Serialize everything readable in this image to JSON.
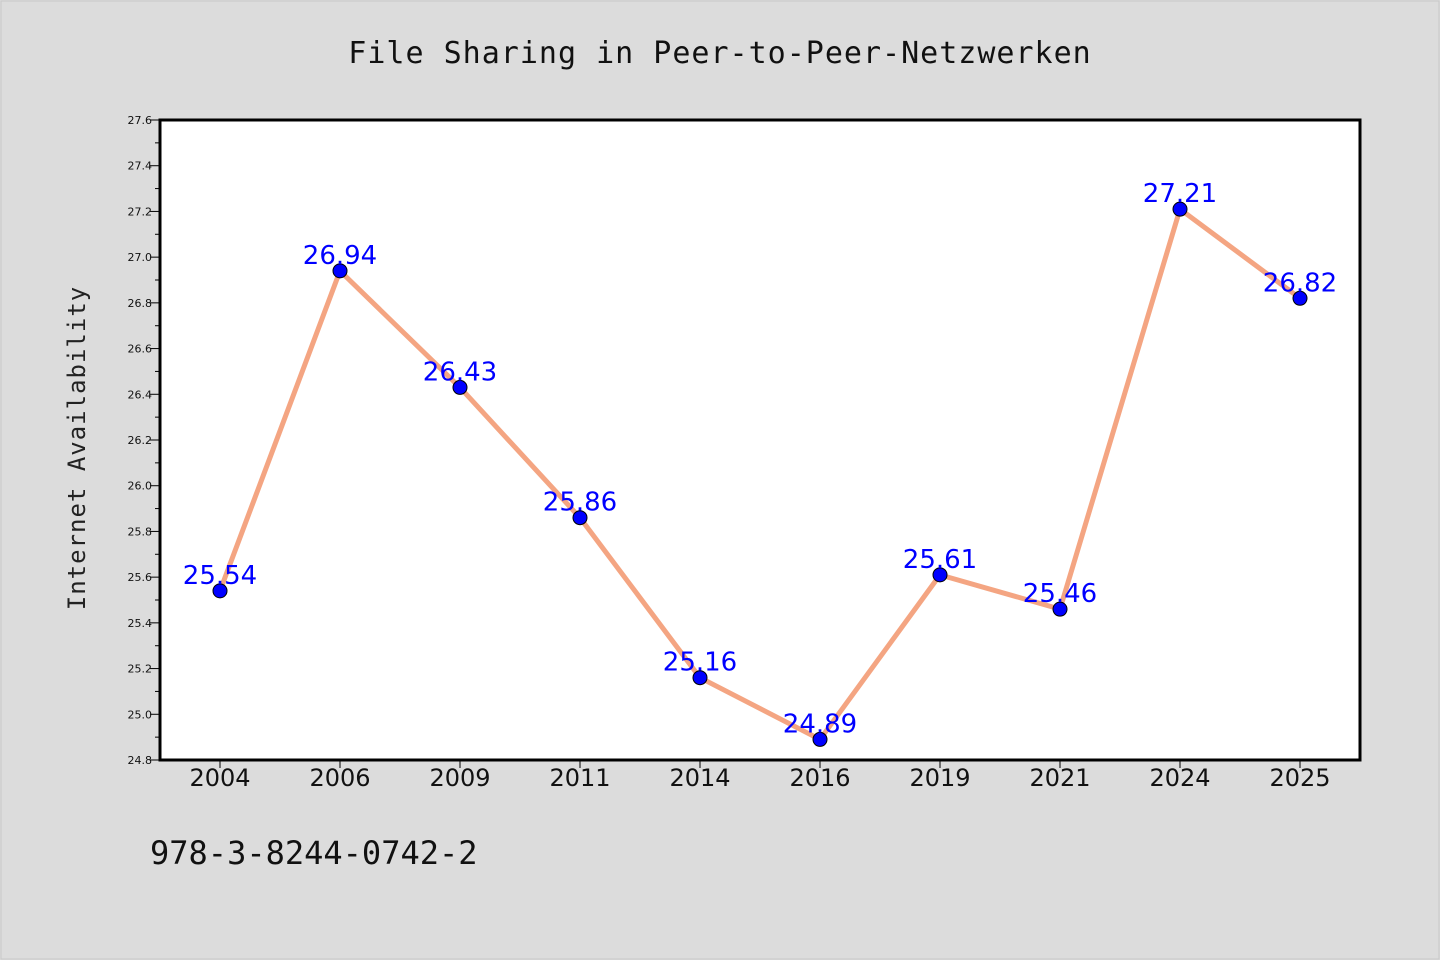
{
  "chart_data": {
    "type": "line",
    "title": "File Sharing in Peer-to-Peer-Netzwerken",
    "xlabel": "",
    "ylabel": "Internet Availability",
    "categories": [
      "2004",
      "2006",
      "2009",
      "2011",
      "2014",
      "2016",
      "2019",
      "2021",
      "2024",
      "2025"
    ],
    "series": [
      {
        "values": [
          25.54,
          26.94,
          26.43,
          25.86,
          25.16,
          24.89,
          25.61,
          25.46,
          27.21,
          26.82
        ]
      }
    ],
    "data_labels": [
      "25.54",
      "26.94",
      "26.43",
      "25.86",
      "25.16",
      "24.89",
      "25.61",
      "25.46",
      "27.21",
      "26.82"
    ],
    "ylim": [
      24.8,
      27.6
    ],
    "yticks": [
      "24.8",
      "25.0",
      "25.2",
      "25.4",
      "25.6",
      "25.8",
      "26.0",
      "26.2",
      "26.4",
      "26.6",
      "26.8",
      "27.0",
      "27.2",
      "27.4",
      "27.6"
    ],
    "grid": false,
    "legend": "none",
    "colors": {
      "line": "#f4a582",
      "marker": "#0000ff",
      "data_label": "#0000ff",
      "plot_background": "#ffffff",
      "figure_background": "#dcdcdc"
    }
  },
  "footer": {
    "identifier": "978-3-8244-0742-2"
  }
}
